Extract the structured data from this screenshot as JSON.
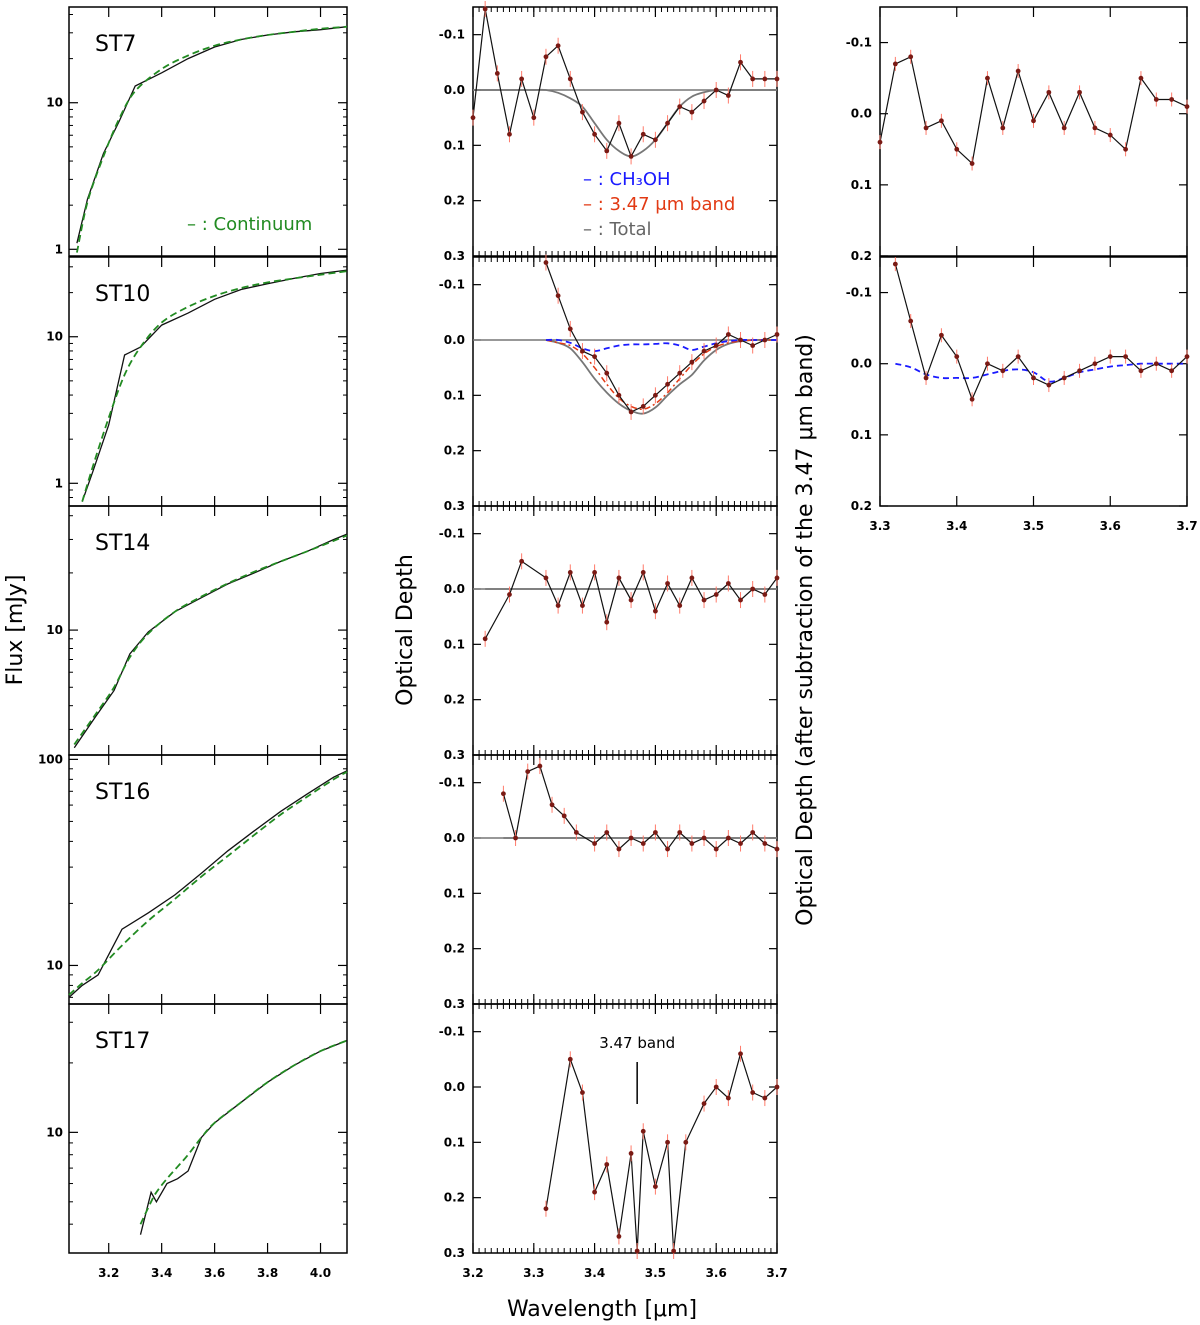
{
  "chart_data": [
    {
      "id": "flux",
      "type": "line",
      "xlim": [
        3.05,
        4.1
      ],
      "xticks": [
        3.2,
        3.4,
        3.6,
        3.8,
        4.0
      ],
      "xtick_labels": [
        "3.2",
        "3.4",
        "3.6",
        "3.8",
        "4.0"
      ],
      "yscale": "log",
      "ylabel": "Flux [mJy]",
      "legend": {
        "text": "– : Continuum",
        "color": "#228b22"
      },
      "panels": [
        {
          "name": "ST7",
          "ylim": [
            0.9,
            45
          ],
          "yticks": [
            1,
            10
          ],
          "ytick_labels": [
            "1",
            "10"
          ],
          "x": [
            3.08,
            3.12,
            3.18,
            3.24,
            3.3,
            3.4,
            3.5,
            3.6,
            3.7,
            3.8,
            3.9,
            4.0,
            4.1
          ],
          "flux": [
            1.1,
            2.2,
            4.5,
            7.5,
            13,
            16,
            20,
            24,
            27,
            29,
            30.5,
            31.5,
            33
          ],
          "continuum": [
            0.95,
            2.1,
            4.3,
            7.8,
            12,
            17,
            21,
            24.5,
            27,
            29,
            30.5,
            32,
            33
          ]
        },
        {
          "name": "ST10",
          "ylim": [
            0.7,
            35
          ],
          "yticks": [
            1,
            10
          ],
          "ytick_labels": [
            "1",
            "10"
          ],
          "x": [
            3.1,
            3.14,
            3.2,
            3.26,
            3.32,
            3.4,
            3.5,
            3.6,
            3.7,
            3.8,
            3.9,
            4.0,
            4.1
          ],
          "flux": [
            0.75,
            1.2,
            2.5,
            7.5,
            8.5,
            12,
            14.5,
            18,
            21,
            23,
            25,
            27,
            28.5
          ],
          "continuum": [
            0.75,
            1.3,
            2.8,
            5.5,
            8.5,
            12.5,
            16,
            19,
            21.5,
            23.5,
            25,
            26.5,
            28
          ]
        },
        {
          "name": "ST14",
          "ylim": [
            2.2,
            45
          ],
          "yticks": [
            10
          ],
          "ytick_labels": [
            "10"
          ],
          "x": [
            3.07,
            3.15,
            3.22,
            3.28,
            3.35,
            3.45,
            3.55,
            3.65,
            3.75,
            3.85,
            3.95,
            4.05,
            4.1
          ],
          "flux": [
            2.4,
            3.5,
            4.8,
            7.5,
            9.8,
            12.5,
            14.8,
            17.5,
            20,
            23,
            26,
            30,
            32
          ],
          "continuum": [
            2.5,
            3.6,
            5.0,
            7.2,
            9.6,
            12.5,
            15,
            17.6,
            20.3,
            23,
            26,
            29.5,
            31.5
          ]
        },
        {
          "name": "ST16",
          "ylim": [
            6.5,
            105
          ],
          "yticks": [
            10,
            100
          ],
          "ytick_labels": [
            "10",
            "100"
          ],
          "x": [
            3.05,
            3.1,
            3.16,
            3.25,
            3.35,
            3.45,
            3.55,
            3.65,
            3.75,
            3.85,
            3.95,
            4.05,
            4.1
          ],
          "flux": [
            7,
            8,
            9,
            15,
            18,
            22,
            28,
            36,
            45,
            56,
            68,
            82,
            88
          ],
          "continuum": [
            7.2,
            8.2,
            9.5,
            12.5,
            16.5,
            21,
            27,
            34,
            43,
            54,
            66,
            80,
            87
          ]
        },
        {
          "name": "ST17",
          "ylim": [
            3.0,
            36
          ],
          "yticks": [
            10
          ],
          "ytick_labels": [
            "10"
          ],
          "x": [
            3.32,
            3.36,
            3.38,
            3.42,
            3.46,
            3.5,
            3.55,
            3.6,
            3.7,
            3.8,
            3.9,
            4.0,
            4.1
          ],
          "flux": [
            3.6,
            5.5,
            5.0,
            6.0,
            6.3,
            6.8,
            9.5,
            11,
            13.5,
            16.5,
            19.5,
            22.5,
            25
          ],
          "continuum": [
            4.0,
            5.0,
            5.5,
            6.3,
            7.1,
            8.0,
            9.5,
            11,
            13.5,
            16.5,
            19.5,
            22.5,
            25
          ]
        }
      ]
    },
    {
      "id": "tau",
      "type": "line",
      "xlim": [
        3.2,
        3.7
      ],
      "xticks": [
        3.2,
        3.3,
        3.4,
        3.5,
        3.6,
        3.7
      ],
      "xtick_labels": [
        "3.2",
        "3.3",
        "3.4",
        "3.5",
        "3.6",
        "3.7"
      ],
      "xlabel": "Wavelength [μm]",
      "ylabel": "Optical Depth",
      "ylim": [
        0.3,
        -0.15
      ],
      "yticks": [
        -0.1,
        0.0,
        0.1,
        0.2,
        0.3
      ],
      "ytick_labels": [
        "-0.1",
        "0.0",
        "0.1",
        "0.2",
        "0.3"
      ],
      "legend": [
        {
          "text": "CH₃OH",
          "color": "#1a1aff"
        },
        {
          "text": "3.47 μm band",
          "color": "#e23a14"
        },
        {
          "text": "Total",
          "color": "#666666"
        }
      ],
      "panels": [
        {
          "name": "ST7",
          "x": [
            3.2,
            3.22,
            3.24,
            3.26,
            3.28,
            3.3,
            3.32,
            3.34,
            3.36,
            3.38,
            3.4,
            3.42,
            3.44,
            3.46,
            3.48,
            3.5,
            3.52,
            3.54,
            3.56,
            3.58,
            3.6,
            3.62,
            3.64,
            3.66,
            3.68,
            3.7
          ],
          "tau": [
            0.05,
            -0.15,
            -0.03,
            0.08,
            -0.02,
            0.05,
            -0.06,
            -0.08,
            -0.02,
            0.04,
            0.08,
            0.11,
            0.06,
            0.12,
            0.08,
            0.09,
            0.06,
            0.03,
            0.04,
            0.02,
            0.0,
            0.01,
            -0.05,
            -0.02,
            -0.02,
            -0.02
          ],
          "total": [
            0.0,
            0.0,
            0.0,
            0.0,
            0.0,
            0.0,
            0.0,
            0.005,
            0.015,
            0.03,
            0.06,
            0.09,
            0.11,
            0.12,
            0.11,
            0.09,
            0.06,
            0.03,
            0.012,
            0.004,
            0.0,
            0.0,
            0.0,
            0.0,
            0.0,
            0.0
          ]
        },
        {
          "name": "ST10",
          "x": [
            3.32,
            3.34,
            3.36,
            3.38,
            3.4,
            3.42,
            3.44,
            3.46,
            3.48,
            3.5,
            3.52,
            3.54,
            3.56,
            3.58,
            3.6,
            3.62,
            3.64,
            3.66,
            3.68,
            3.7
          ],
          "tau": [
            -0.14,
            -0.08,
            -0.02,
            0.02,
            0.03,
            0.06,
            0.1,
            0.13,
            0.12,
            0.1,
            0.08,
            0.06,
            0.04,
            0.02,
            0.01,
            -0.01,
            0.0,
            0.01,
            0.0,
            -0.01
          ],
          "ch3oh": [
            0.0,
            0.0,
            0.005,
            0.015,
            0.02,
            0.015,
            0.01,
            0.008,
            0.008,
            0.007,
            0.006,
            0.01,
            0.018,
            0.012,
            0.006,
            0.002,
            0.0,
            0.0,
            0.0,
            0.0
          ],
          "band": [
            0.0,
            0.005,
            0.01,
            0.025,
            0.05,
            0.08,
            0.105,
            0.12,
            0.125,
            0.115,
            0.095,
            0.07,
            0.045,
            0.025,
            0.012,
            0.005,
            0.002,
            0.0,
            0.0,
            0.0
          ],
          "total": [
            0.0,
            0.005,
            0.015,
            0.04,
            0.07,
            0.095,
            0.115,
            0.128,
            0.133,
            0.122,
            0.1,
            0.08,
            0.063,
            0.037,
            0.018,
            0.007,
            0.002,
            0.0,
            0.0,
            0.0
          ]
        },
        {
          "name": "ST14",
          "x": [
            3.22,
            3.26,
            3.28,
            3.32,
            3.34,
            3.36,
            3.38,
            3.4,
            3.42,
            3.44,
            3.46,
            3.48,
            3.5,
            3.52,
            3.54,
            3.56,
            3.58,
            3.6,
            3.62,
            3.64,
            3.66,
            3.68,
            3.7
          ],
          "tau": [
            0.09,
            0.01,
            -0.05,
            -0.02,
            0.03,
            -0.03,
            0.03,
            -0.03,
            0.06,
            -0.02,
            0.02,
            -0.03,
            0.04,
            -0.01,
            0.03,
            -0.02,
            0.02,
            0.01,
            -0.01,
            0.02,
            0.0,
            0.01,
            -0.02
          ],
          "total": [
            0,
            0,
            0,
            0,
            0,
            0,
            0,
            0,
            0,
            0,
            0,
            0,
            0,
            0,
            0,
            0,
            0,
            0,
            0,
            0,
            0,
            0,
            0
          ]
        },
        {
          "name": "ST16",
          "x": [
            3.25,
            3.27,
            3.29,
            3.31,
            3.33,
            3.35,
            3.37,
            3.4,
            3.42,
            3.44,
            3.46,
            3.48,
            3.5,
            3.52,
            3.54,
            3.56,
            3.58,
            3.6,
            3.62,
            3.64,
            3.66,
            3.68,
            3.7
          ],
          "tau": [
            -0.08,
            0.0,
            -0.12,
            -0.13,
            -0.06,
            -0.04,
            -0.01,
            0.01,
            -0.01,
            0.02,
            0.0,
            0.01,
            -0.01,
            0.02,
            -0.01,
            0.01,
            0.0,
            0.02,
            0.0,
            0.01,
            -0.01,
            0.01,
            0.02
          ],
          "total": [
            0,
            0,
            0,
            0,
            0,
            0,
            0,
            0,
            0,
            0,
            0,
            0,
            0,
            0,
            0,
            0,
            0,
            0,
            0,
            0,
            0,
            0,
            0
          ]
        },
        {
          "name": "ST17",
          "annotation": "3.47 band",
          "annotation_x": 3.47,
          "x": [
            3.32,
            3.36,
            3.38,
            3.4,
            3.42,
            3.44,
            3.46,
            3.47,
            3.48,
            3.5,
            3.52,
            3.53,
            3.55,
            3.58,
            3.6,
            3.62,
            3.64,
            3.66,
            3.68,
            3.7
          ],
          "tau": [
            0.22,
            -0.05,
            0.01,
            0.19,
            0.14,
            0.27,
            0.12,
            0.3,
            0.08,
            0.18,
            0.1,
            0.3,
            0.1,
            0.03,
            0.0,
            0.02,
            -0.06,
            0.01,
            0.02,
            0.0
          ]
        }
      ]
    },
    {
      "id": "residual",
      "type": "line",
      "xlim": [
        3.3,
        3.7
      ],
      "xticks": [
        3.3,
        3.4,
        3.5,
        3.6,
        3.7
      ],
      "xtick_labels": [
        "3.3",
        "3.4",
        "3.5",
        "3.6",
        "3.7"
      ],
      "ylabel": "Optical Depth (after subtraction of the 3.47 μm band)",
      "ylim": [
        0.2,
        -0.15
      ],
      "yticks": [
        -0.1,
        0.0,
        0.1,
        0.2
      ],
      "ytick_labels": [
        "-0.1",
        "0.0",
        "0.1",
        "0.2"
      ],
      "panels": [
        {
          "name": "ST7",
          "x": [
            3.3,
            3.32,
            3.34,
            3.36,
            3.38,
            3.4,
            3.42,
            3.44,
            3.46,
            3.48,
            3.5,
            3.52,
            3.54,
            3.56,
            3.58,
            3.6,
            3.62,
            3.64,
            3.66,
            3.68,
            3.7
          ],
          "tau": [
            0.04,
            -0.07,
            -0.08,
            0.02,
            0.01,
            0.05,
            0.07,
            -0.05,
            0.02,
            -0.06,
            0.01,
            -0.03,
            0.02,
            -0.03,
            0.02,
            0.03,
            0.05,
            -0.05,
            -0.02,
            -0.02,
            -0.01
          ]
        },
        {
          "name": "ST10",
          "x": [
            3.32,
            3.34,
            3.36,
            3.38,
            3.4,
            3.42,
            3.44,
            3.46,
            3.48,
            3.5,
            3.52,
            3.54,
            3.56,
            3.58,
            3.6,
            3.62,
            3.64,
            3.66,
            3.68,
            3.7
          ],
          "tau": [
            -0.14,
            -0.06,
            0.02,
            -0.04,
            -0.01,
            0.05,
            0.0,
            0.01,
            -0.01,
            0.02,
            0.03,
            0.02,
            0.01,
            0.0,
            -0.01,
            -0.01,
            0.01,
            0.0,
            0.01,
            -0.01
          ],
          "ch3oh": [
            0.0,
            0.005,
            0.015,
            0.02,
            0.02,
            0.02,
            0.015,
            0.01,
            0.008,
            0.012,
            0.025,
            0.02,
            0.012,
            0.008,
            0.004,
            0.002,
            0.0,
            0.0,
            0.0,
            0.0
          ]
        }
      ]
    }
  ]
}
